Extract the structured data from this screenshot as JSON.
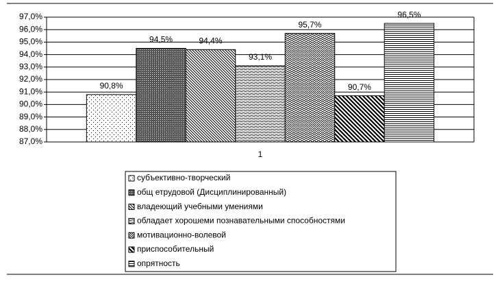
{
  "chart_data": {
    "type": "bar",
    "categories": [
      "1"
    ],
    "ylim": [
      87,
      97
    ],
    "yticks": [
      {
        "value": 87,
        "label": "87,0%"
      },
      {
        "value": 88,
        "label": "88,0%"
      },
      {
        "value": 89,
        "label": "89,0%"
      },
      {
        "value": 90,
        "label": "90,0%"
      },
      {
        "value": 91,
        "label": "91,0%"
      },
      {
        "value": 92,
        "label": "92,0%"
      },
      {
        "value": 93,
        "label": "93,0%"
      },
      {
        "value": 94,
        "label": "94,0%"
      },
      {
        "value": 95,
        "label": "95,0%"
      },
      {
        "value": 96,
        "label": "96,0%"
      },
      {
        "value": 97,
        "label": "97,0%"
      }
    ],
    "grid": true,
    "legend": "bottom",
    "series": [
      {
        "name": "субъективно-творческий",
        "color": "#000000",
        "pattern": "dots",
        "values": [
          90.8
        ],
        "value_labels": [
          "90,8%"
        ]
      },
      {
        "name": "общ етрудовой (Дисциплинированный)",
        "color": "#000000",
        "pattern": "dense-crosshatch",
        "values": [
          94.5
        ],
        "value_labels": [
          "94,5%"
        ]
      },
      {
        "name": "владеющий учебными умениями",
        "color": "#000000",
        "pattern": "thin-diagonal",
        "values": [
          94.4
        ],
        "value_labels": [
          "94,4%"
        ]
      },
      {
        "name": "обладает хорошеми познавательными способностями",
        "color": "#000000",
        "pattern": "wave",
        "values": [
          93.1
        ],
        "value_labels": [
          "93,1%"
        ]
      },
      {
        "name": "мотивационно-волевой",
        "color": "#000000",
        "pattern": "zigzag",
        "values": [
          95.7
        ],
        "value_labels": [
          "95,7%"
        ]
      },
      {
        "name": "приспособительный",
        "color": "#000000",
        "pattern": "thick-diagonal",
        "values": [
          90.7
        ],
        "value_labels": [
          "90,7%"
        ]
      },
      {
        "name": "опрятность",
        "color": "#000000",
        "pattern": "horizontal",
        "values": [
          96.5
        ],
        "value_labels": [
          "96,5%"
        ]
      }
    ]
  }
}
